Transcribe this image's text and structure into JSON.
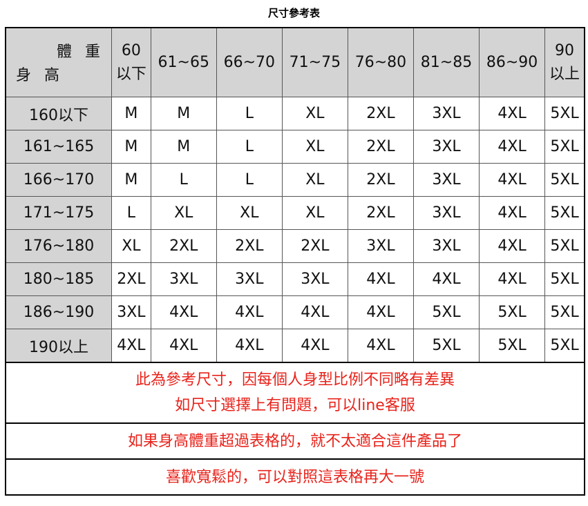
{
  "title": "尺寸參考表",
  "header": {
    "weight_label": "體 重",
    "height_label": "身 高",
    "columns": [
      [
        "60",
        "以下"
      ],
      [
        "61~65"
      ],
      [
        "66~70"
      ],
      [
        "71~75"
      ],
      [
        "76~80"
      ],
      [
        "81~85"
      ],
      [
        "86~90"
      ],
      [
        "90",
        "以上"
      ]
    ]
  },
  "rows": [
    {
      "height": "160以下",
      "sizes": [
        "M",
        "M",
        "L",
        "XL",
        "2XL",
        "3XL",
        "4XL",
        "5XL"
      ]
    },
    {
      "height": "161~165",
      "sizes": [
        "M",
        "M",
        "L",
        "XL",
        "2XL",
        "3XL",
        "4XL",
        "5XL"
      ]
    },
    {
      "height": "166~170",
      "sizes": [
        "M",
        "L",
        "L",
        "XL",
        "2XL",
        "3XL",
        "4XL",
        "5XL"
      ]
    },
    {
      "height": "171~175",
      "sizes": [
        "L",
        "XL",
        "XL",
        "XL",
        "2XL",
        "3XL",
        "4XL",
        "5XL"
      ]
    },
    {
      "height": "176~180",
      "sizes": [
        "XL",
        "2XL",
        "2XL",
        "2XL",
        "3XL",
        "3XL",
        "4XL",
        "5XL"
      ]
    },
    {
      "height": "180~185",
      "sizes": [
        "2XL",
        "3XL",
        "3XL",
        "3XL",
        "4XL",
        "4XL",
        "4XL",
        "5XL"
      ]
    },
    {
      "height": "186~190",
      "sizes": [
        "3XL",
        "4XL",
        "4XL",
        "4XL",
        "4XL",
        "5XL",
        "5XL",
        "5XL"
      ]
    },
    {
      "height": "190以上",
      "sizes": [
        "4XL",
        "4XL",
        "4XL",
        "4XL",
        "4XL",
        "5XL",
        "5XL",
        "5XL"
      ]
    }
  ],
  "notes": [
    [
      "此為參考尺寸，因每個人身型比例不同略有差異",
      "如尺寸選擇上有問題，可以line客服"
    ],
    [
      "如果身高體重超過表格的，就不太適合這件產品了"
    ],
    [
      "喜歡寬鬆的，可以對照這表格再大一號"
    ]
  ],
  "colors": {
    "header_bg": "#d4d4d4",
    "note_text": "#e8221a"
  }
}
